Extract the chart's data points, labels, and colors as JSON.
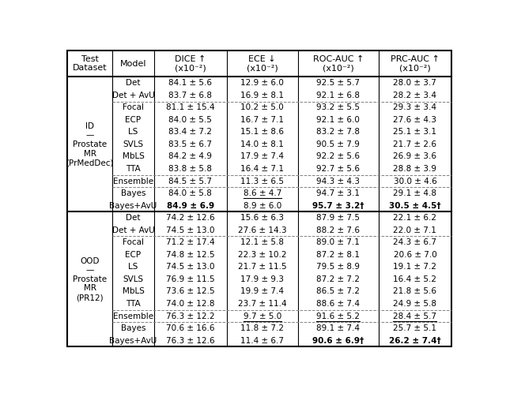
{
  "id_label": "ID\n—\nProstate\nMR\n(PrMedDec)",
  "ood_label": "OOD\n—\nProstate\nMR\n(PR12)",
  "header_labels": [
    "Test\nDataset",
    "Model",
    "DICE ↑\n(x10⁻²)",
    "ECE ↓\n(x10⁻²)",
    "ROC-AUC ↑\n(x10⁻²)",
    "PRC-AUC ↑\n(x10⁻²)"
  ],
  "id_rows": [
    {
      "model": "Det",
      "dice": "84.1 ± 5.6",
      "ece": "12.9 ± 6.0",
      "roc": "92.5 ± 5.7",
      "prc": "28.0 ± 3.7",
      "bold_dice": false,
      "bold_roc": false,
      "bold_prc": false,
      "underline_ece": false,
      "underline_roc": false,
      "underline_prc": false,
      "dagger_roc": false,
      "dagger_prc": false
    },
    {
      "model": "Det + AvU",
      "dice": "83.7 ± 6.8",
      "ece": "16.9 ± 8.1",
      "roc": "92.1 ± 6.8",
      "prc": "28.2 ± 3.4",
      "bold_dice": false,
      "bold_roc": false,
      "bold_prc": false,
      "underline_ece": false,
      "underline_roc": false,
      "underline_prc": false,
      "dagger_roc": false,
      "dagger_prc": false
    },
    {
      "model": "Focal",
      "dice": "81.1 ± 15.4",
      "ece": "10.2 ± 5.0",
      "roc": "93.2 ± 5.5",
      "prc": "29.3 ± 3.4",
      "bold_dice": false,
      "bold_roc": false,
      "bold_prc": false,
      "underline_ece": false,
      "underline_roc": false,
      "underline_prc": false,
      "dagger_roc": false,
      "dagger_prc": false
    },
    {
      "model": "ECP",
      "dice": "84.0 ± 5.5",
      "ece": "16.7 ± 7.1",
      "roc": "92.1 ± 6.0",
      "prc": "27.6 ± 4.3",
      "bold_dice": false,
      "bold_roc": false,
      "bold_prc": false,
      "underline_ece": false,
      "underline_roc": false,
      "underline_prc": false,
      "dagger_roc": false,
      "dagger_prc": false
    },
    {
      "model": "LS",
      "dice": "83.4 ± 7.2",
      "ece": "15.1 ± 8.6",
      "roc": "83.2 ± 7.8",
      "prc": "25.1 ± 3.1",
      "bold_dice": false,
      "bold_roc": false,
      "bold_prc": false,
      "underline_ece": false,
      "underline_roc": false,
      "underline_prc": false,
      "dagger_roc": false,
      "dagger_prc": false
    },
    {
      "model": "SVLS",
      "dice": "83.5 ± 6.7",
      "ece": "14.0 ± 8.1",
      "roc": "90.5 ± 7.9",
      "prc": "21.7 ± 2.6",
      "bold_dice": false,
      "bold_roc": false,
      "bold_prc": false,
      "underline_ece": false,
      "underline_roc": false,
      "underline_prc": false,
      "dagger_roc": false,
      "dagger_prc": false
    },
    {
      "model": "MbLS",
      "dice": "84.2 ± 4.9",
      "ece": "17.9 ± 7.4",
      "roc": "92.2 ± 5.6",
      "prc": "26.9 ± 3.6",
      "bold_dice": false,
      "bold_roc": false,
      "bold_prc": false,
      "underline_ece": false,
      "underline_roc": false,
      "underline_prc": false,
      "dagger_roc": false,
      "dagger_prc": false
    },
    {
      "model": "TTA",
      "dice": "83.8 ± 5.8",
      "ece": "16.4 ± 7.1",
      "roc": "92.7 ± 5.6",
      "prc": "28.8 ± 3.9",
      "bold_dice": false,
      "bold_roc": false,
      "bold_prc": false,
      "underline_ece": false,
      "underline_roc": false,
      "underline_prc": false,
      "dagger_roc": false,
      "dagger_prc": false
    },
    {
      "model": "Ensemble",
      "dice": "84.5 ± 5.7",
      "ece": "11.3 ± 6.5",
      "roc": "94.3 ± 4.3",
      "prc": "30.0 ± 4.6",
      "bold_dice": false,
      "bold_roc": false,
      "bold_prc": false,
      "underline_ece": false,
      "underline_roc": false,
      "underline_prc": false,
      "dagger_roc": false,
      "dagger_prc": false
    },
    {
      "model": "Bayes",
      "dice": "84.0 ± 5.8",
      "ece": "8.6 ± 4.7",
      "roc": "94.7 ± 3.1",
      "prc": "29.1 ± 4.8",
      "bold_dice": false,
      "bold_roc": false,
      "bold_prc": false,
      "underline_ece": true,
      "underline_roc": false,
      "underline_prc": false,
      "dagger_roc": false,
      "dagger_prc": false
    },
    {
      "model": "Bayes+AvU",
      "dice": "84.9 ± 6.9",
      "ece": "8.9 ± 6.0",
      "roc": "95.7 ± 3.2",
      "prc": "30.5 ± 4.5",
      "bold_dice": true,
      "bold_roc": true,
      "bold_prc": true,
      "underline_ece": false,
      "underline_roc": false,
      "underline_prc": false,
      "dagger_roc": true,
      "dagger_prc": true
    }
  ],
  "ood_rows": [
    {
      "model": "Det",
      "dice": "74.2 ± 12.6",
      "ece": "15.6 ± 6.3",
      "roc": "87.9 ± 7.5",
      "prc": "22.1 ± 6.2",
      "bold_dice": false,
      "bold_roc": false,
      "bold_prc": false,
      "underline_ece": false,
      "underline_roc": false,
      "underline_prc": false,
      "dagger_roc": false,
      "dagger_prc": false
    },
    {
      "model": "Det + AvU",
      "dice": "74.5 ± 13.0",
      "ece": "27.6 ± 14.3",
      "roc": "88.2 ± 7.6",
      "prc": "22.0 ± 7.1",
      "bold_dice": false,
      "bold_roc": false,
      "bold_prc": false,
      "underline_ece": false,
      "underline_roc": false,
      "underline_prc": false,
      "dagger_roc": false,
      "dagger_prc": false
    },
    {
      "model": "Focal",
      "dice": "71.2 ± 17.4",
      "ece": "12.1 ± 5.8",
      "roc": "89.0 ± 7.1",
      "prc": "24.3 ± 6.7",
      "bold_dice": false,
      "bold_roc": false,
      "bold_prc": false,
      "underline_ece": false,
      "underline_roc": false,
      "underline_prc": false,
      "dagger_roc": false,
      "dagger_prc": false
    },
    {
      "model": "ECP",
      "dice": "74.8 ± 12.5",
      "ece": "22.3 ± 10.2",
      "roc": "87.2 ± 8.1",
      "prc": "20.6 ± 7.0",
      "bold_dice": false,
      "bold_roc": false,
      "bold_prc": false,
      "underline_ece": false,
      "underline_roc": false,
      "underline_prc": false,
      "dagger_roc": false,
      "dagger_prc": false
    },
    {
      "model": "LS",
      "dice": "74.5 ± 13.0",
      "ece": "21.7 ± 11.5",
      "roc": "79.5 ± 8.9",
      "prc": "19.1 ± 7.2",
      "bold_dice": false,
      "bold_roc": false,
      "bold_prc": false,
      "underline_ece": false,
      "underline_roc": false,
      "underline_prc": false,
      "dagger_roc": false,
      "dagger_prc": false
    },
    {
      "model": "SVLS",
      "dice": "76.9 ± 11.5",
      "ece": "17.9 ± 9.3",
      "roc": "87.2 ± 7.2",
      "prc": "16.4 ± 5.2",
      "bold_dice": false,
      "bold_roc": false,
      "bold_prc": false,
      "underline_ece": false,
      "underline_roc": false,
      "underline_prc": false,
      "dagger_roc": false,
      "dagger_prc": false
    },
    {
      "model": "MbLS",
      "dice": "73.6 ± 12.5",
      "ece": "19.9 ± 7.4",
      "roc": "86.5 ± 7.2",
      "prc": "21.8 ± 5.6",
      "bold_dice": false,
      "bold_roc": false,
      "bold_prc": false,
      "underline_ece": false,
      "underline_roc": false,
      "underline_prc": false,
      "dagger_roc": false,
      "dagger_prc": false
    },
    {
      "model": "TTA",
      "dice": "74.0 ± 12.8",
      "ece": "23.7 ± 11.4",
      "roc": "88.6 ± 7.4",
      "prc": "24.9 ± 5.8",
      "bold_dice": false,
      "bold_roc": false,
      "bold_prc": false,
      "underline_ece": false,
      "underline_roc": false,
      "underline_prc": false,
      "dagger_roc": false,
      "dagger_prc": false
    },
    {
      "model": "Ensemble",
      "dice": "76.3 ± 12.2",
      "ece": "9.7 ± 5.0",
      "roc": "91.6 ± 5.2",
      "prc": "28.4 ± 5.7",
      "bold_dice": false,
      "bold_roc": false,
      "bold_prc": false,
      "underline_ece": true,
      "underline_roc": true,
      "underline_prc": true,
      "dagger_roc": false,
      "dagger_prc": false
    },
    {
      "model": "Bayes",
      "dice": "70.6 ± 16.6",
      "ece": "11.8 ± 7.2",
      "roc": "89.1 ± 7.4",
      "prc": "25.7 ± 5.1",
      "bold_dice": false,
      "bold_roc": false,
      "bold_prc": false,
      "underline_ece": false,
      "underline_roc": false,
      "underline_prc": false,
      "dagger_roc": false,
      "dagger_prc": false
    },
    {
      "model": "Bayes+AvU",
      "dice": "76.3 ± 12.6",
      "ece": "11.4 ± 6.7",
      "roc": "90.6 ± 6.9",
      "prc": "26.2 ± 7.4",
      "bold_dice": false,
      "bold_roc": true,
      "bold_prc": true,
      "underline_ece": false,
      "underline_roc": false,
      "underline_prc": false,
      "dagger_roc": true,
      "dagger_prc": true
    }
  ],
  "group_separators_id": [
    2,
    8,
    9
  ],
  "group_separators_ood": [
    2,
    8,
    9
  ],
  "figsize": [
    6.4,
    4.98
  ],
  "dpi": 100,
  "font_size": 7.5,
  "header_font_size": 8.0
}
